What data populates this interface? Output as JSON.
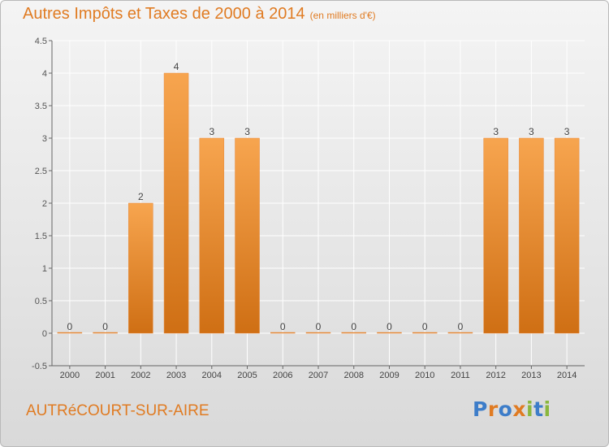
{
  "header": {
    "title": "Autres Impôts et Taxes de 2000 à 2014",
    "unit": "(en milliers d'€)"
  },
  "footer": {
    "commune": "AUTRéCOURT-SUR-AIRE"
  },
  "logo": {
    "text": "Proxiti",
    "letters": [
      {
        "ch": "P",
        "color": "#3d7dc9"
      },
      {
        "ch": "r",
        "color": "#e07b22"
      },
      {
        "ch": "o",
        "color": "#3d7dc9"
      },
      {
        "ch": "x",
        "color": "#e07b22"
      },
      {
        "ch": "i",
        "color": "#8ab73e"
      },
      {
        "ch": "t",
        "color": "#3d7dc9"
      },
      {
        "ch": "i",
        "color": "#8ab73e"
      }
    ]
  },
  "chart_data": {
    "type": "bar",
    "title": "Autres Impôts et Taxes de 2000 à 2014",
    "categories": [
      "2000",
      "2001",
      "2002",
      "2003",
      "2004",
      "2005",
      "2006",
      "2007",
      "2008",
      "2009",
      "2010",
      "2011",
      "2012",
      "2013",
      "2014"
    ],
    "values": [
      0,
      0,
      2,
      4,
      3,
      3,
      0,
      0,
      0,
      0,
      0,
      0,
      3,
      3,
      3
    ],
    "data_labels": [
      "0",
      "0",
      "2",
      "4",
      "3",
      "3",
      "0",
      "0",
      "0",
      "0",
      "0",
      "0",
      "3",
      "3",
      "3"
    ],
    "ylim": [
      -0.5,
      4.5
    ],
    "yticks": [
      {
        "v": -0.5,
        "label": "-0.5"
      },
      {
        "v": 0,
        "label": "0"
      },
      {
        "v": 0.5,
        "label": "0.5"
      },
      {
        "v": 1,
        "label": "1"
      },
      {
        "v": 1.5,
        "label": "1.5"
      },
      {
        "v": 2,
        "label": "2"
      },
      {
        "v": 2.5,
        "label": "2.5"
      },
      {
        "v": 3,
        "label": "3"
      },
      {
        "v": 3.5,
        "label": "3.5"
      },
      {
        "v": 4,
        "label": "4"
      },
      {
        "v": 4.5,
        "label": "4.5"
      }
    ],
    "grid": true,
    "colors": {
      "bar_light": "#f7a54f",
      "bar_dark": "#cf6f14",
      "grid": "#ffffff",
      "axis": "#666666"
    }
  }
}
